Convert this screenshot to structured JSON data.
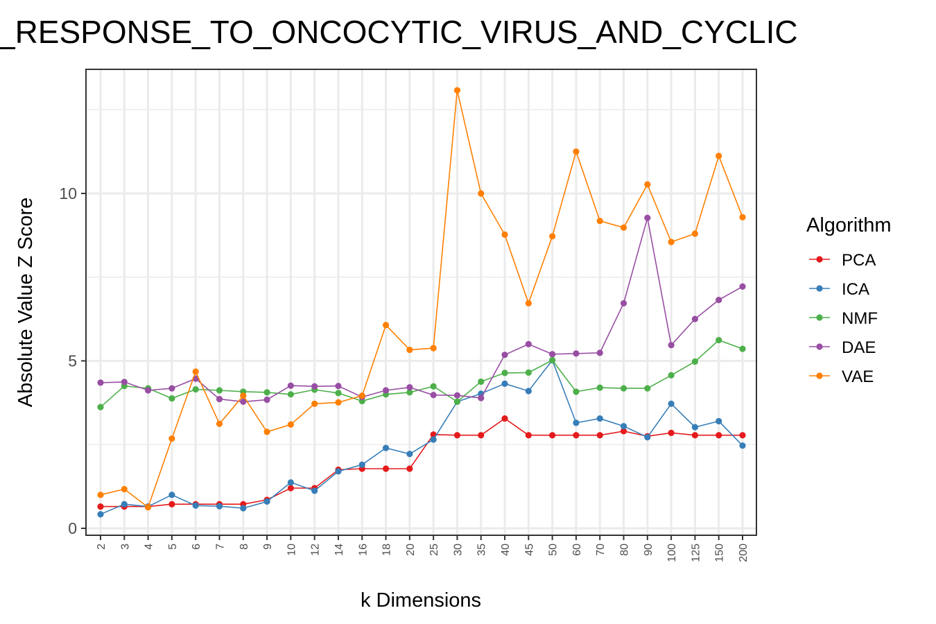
{
  "chart_data": {
    "type": "line",
    "title": "_RESPONSE_TO_ONCOCYTIC_VIRUS_AND_CYCLIC",
    "xlabel": "k Dimensions",
    "ylabel": "Absolute Value Z Score",
    "legend_title": "Algorithm",
    "legend_position": "right",
    "grid": true,
    "ylim": [
      -0.2,
      13.5
    ],
    "yticks": [
      "0",
      "5",
      "10"
    ],
    "categories": [
      "2",
      "3",
      "4",
      "5",
      "6",
      "7",
      "8",
      "9",
      "10",
      "12",
      "14",
      "16",
      "18",
      "20",
      "25",
      "30",
      "35",
      "40",
      "45",
      "50",
      "60",
      "70",
      "80",
      "90",
      "100",
      "125",
      "150",
      "200"
    ],
    "series": [
      {
        "name": "PCA",
        "color": "#e41a1c",
        "values": [
          0.65,
          0.65,
          0.65,
          0.72,
          0.72,
          0.72,
          0.72,
          0.85,
          1.2,
          1.2,
          1.75,
          1.78,
          1.78,
          1.78,
          2.8,
          2.78,
          2.78,
          3.28,
          2.78,
          2.78,
          2.78,
          2.78,
          2.9,
          2.75,
          2.85,
          2.78,
          2.78,
          2.78
        ]
      },
      {
        "name": "ICA",
        "color": "#377eb8",
        "values": [
          0.42,
          0.72,
          0.65,
          1.0,
          0.68,
          0.66,
          0.6,
          0.8,
          1.37,
          1.12,
          1.7,
          1.9,
          2.4,
          2.22,
          2.65,
          3.78,
          4.02,
          4.32,
          4.1,
          5.02,
          3.15,
          3.28,
          3.05,
          2.72,
          3.72,
          3.02,
          3.2,
          2.47
        ]
      },
      {
        "name": "NMF",
        "color": "#4daf4a",
        "values": [
          3.62,
          4.25,
          4.18,
          3.88,
          4.15,
          4.12,
          4.08,
          4.06,
          4.0,
          4.14,
          4.04,
          3.8,
          4.0,
          4.06,
          4.24,
          3.78,
          4.38,
          4.64,
          4.65,
          5.02,
          4.08,
          4.2,
          4.18,
          4.18,
          4.57,
          4.98,
          5.62,
          5.36
        ]
      },
      {
        "name": "DAE",
        "color": "#984ea3",
        "values": [
          4.35,
          4.37,
          4.12,
          4.18,
          4.47,
          3.86,
          3.78,
          3.84,
          4.26,
          4.24,
          4.25,
          3.92,
          4.12,
          4.21,
          3.98,
          3.97,
          3.89,
          5.18,
          5.5,
          5.2,
          5.22,
          5.24,
          6.72,
          9.27,
          5.47,
          6.25,
          6.82,
          7.22
        ]
      },
      {
        "name": "VAE",
        "color": "#ff7f00",
        "values": [
          1.0,
          1.17,
          0.63,
          2.68,
          4.68,
          3.12,
          3.96,
          2.88,
          3.1,
          3.72,
          3.76,
          3.96,
          6.07,
          5.33,
          5.38,
          13.08,
          10.0,
          8.77,
          6.72,
          8.72,
          11.25,
          9.18,
          8.98,
          10.27,
          8.55,
          8.8,
          11.12,
          9.29
        ]
      }
    ]
  }
}
